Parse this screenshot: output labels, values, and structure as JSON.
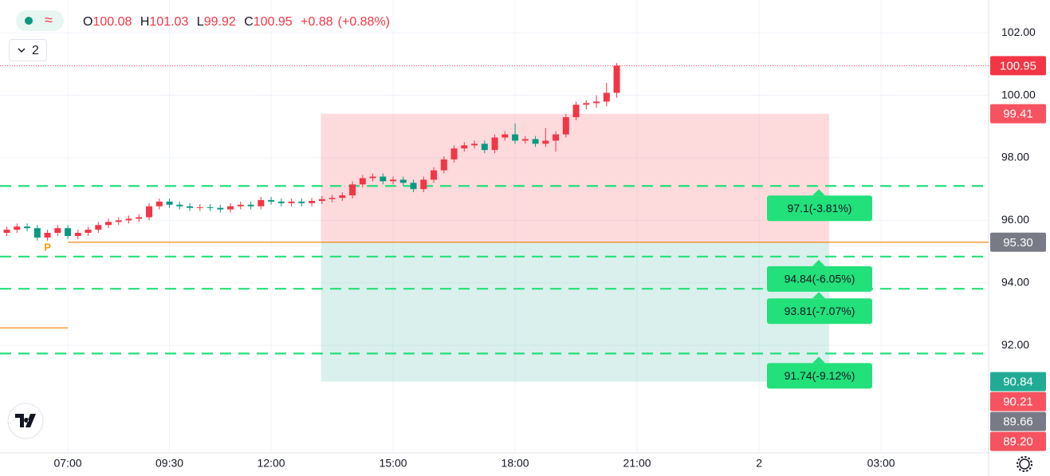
{
  "legend": {
    "open_label": "O",
    "open": "100.08",
    "high_label": "H",
    "high": "101.03",
    "low_label": "L",
    "low": "99.92",
    "close_label": "C",
    "close": "100.95",
    "change": "+0.88",
    "change_pct": "(+0.88%)"
  },
  "indicator_toggle": "2",
  "chart_data": {
    "type": "candlestick",
    "up_color": "#f23645",
    "down_color": "#089981",
    "open": [
      95.6,
      95.7,
      95.8,
      95.75,
      95.45,
      95.6,
      95.75,
      95.5,
      95.6,
      95.7,
      95.85,
      95.95,
      96.0,
      96.05,
      96.1,
      96.45,
      96.6,
      96.5,
      96.45,
      96.4,
      96.42,
      96.4,
      96.35,
      96.45,
      96.5,
      96.45,
      96.65,
      96.6,
      96.55,
      96.6,
      96.55,
      96.62,
      96.68,
      96.72,
      96.8,
      97.15,
      97.35,
      97.4,
      97.25,
      97.3,
      97.2,
      97.0,
      97.3,
      97.6,
      97.95,
      98.3,
      98.4,
      98.45,
      98.25,
      98.65,
      98.75,
      98.55,
      98.6,
      98.45,
      98.55,
      98.75,
      99.3,
      99.7,
      99.75,
      99.8,
      100.08
    ],
    "high": [
      95.8,
      95.9,
      95.9,
      95.85,
      95.7,
      95.85,
      95.85,
      95.7,
      95.8,
      95.95,
      96.05,
      96.1,
      96.15,
      96.2,
      96.55,
      96.7,
      96.7,
      96.6,
      96.55,
      96.52,
      96.52,
      96.5,
      96.55,
      96.6,
      96.6,
      96.75,
      96.75,
      96.7,
      96.7,
      96.7,
      96.72,
      96.78,
      96.82,
      96.9,
      97.25,
      97.45,
      97.5,
      97.5,
      97.4,
      97.4,
      97.3,
      97.4,
      97.7,
      98.05,
      98.4,
      98.5,
      98.55,
      98.55,
      98.75,
      98.85,
      99.1,
      98.7,
      98.7,
      98.95,
      98.85,
      99.4,
      99.8,
      99.85,
      100.0,
      100.4,
      101.03
    ],
    "low": [
      95.5,
      95.6,
      95.65,
      95.35,
      95.35,
      95.5,
      95.4,
      95.4,
      95.5,
      95.6,
      95.75,
      95.85,
      95.9,
      95.95,
      96.0,
      96.35,
      96.4,
      96.35,
      96.3,
      96.3,
      96.3,
      96.25,
      96.25,
      96.35,
      96.35,
      96.35,
      96.5,
      96.45,
      96.45,
      96.45,
      96.45,
      96.52,
      96.58,
      96.62,
      96.7,
      97.05,
      97.25,
      97.15,
      97.15,
      97.1,
      96.9,
      96.9,
      97.2,
      97.5,
      97.85,
      98.2,
      98.3,
      98.15,
      98.15,
      98.55,
      98.45,
      98.45,
      98.35,
      98.35,
      98.2,
      98.65,
      99.2,
      99.55,
      99.6,
      99.65,
      99.92
    ],
    "close": [
      95.7,
      95.8,
      95.75,
      95.45,
      95.6,
      95.75,
      95.5,
      95.6,
      95.7,
      95.85,
      95.95,
      96.0,
      96.05,
      96.1,
      96.45,
      96.6,
      96.5,
      96.45,
      96.4,
      96.42,
      96.4,
      96.35,
      96.45,
      96.5,
      96.45,
      96.65,
      96.6,
      96.55,
      96.6,
      96.55,
      96.62,
      96.68,
      96.72,
      96.8,
      97.15,
      97.35,
      97.4,
      97.25,
      97.3,
      97.2,
      97.0,
      97.3,
      97.6,
      97.95,
      98.3,
      98.4,
      98.45,
      98.25,
      98.65,
      98.75,
      98.55,
      98.6,
      98.45,
      98.55,
      98.75,
      99.3,
      99.7,
      99.75,
      99.8,
      100.08,
      100.95
    ],
    "xlim": [
      -0.67,
      96.58
    ],
    "xticks": [
      {
        "value": 6,
        "label": "07:00"
      },
      {
        "value": 16,
        "label": "09:30"
      },
      {
        "value": 26,
        "label": "12:00"
      },
      {
        "value": 38,
        "label": "15:00"
      },
      {
        "value": 50,
        "label": "18:00"
      },
      {
        "value": 62,
        "label": "21:00"
      },
      {
        "value": 74,
        "label": "2"
      },
      {
        "value": 86,
        "label": "03:00"
      }
    ],
    "ylim": [
      88.56,
      103.05
    ],
    "yticks": [
      {
        "value": 102,
        "label": "102.00"
      },
      {
        "value": 100,
        "label": "100.00"
      },
      {
        "value": 98,
        "label": "98.00"
      },
      {
        "value": 96,
        "label": "96.00"
      },
      {
        "value": 94,
        "label": "94.00"
      },
      {
        "value": 92,
        "label": "92.00"
      }
    ],
    "grid": true,
    "price_labels": [
      {
        "value": 100.95,
        "label": "100.95",
        "color": "#f23645"
      },
      {
        "value": 99.41,
        "label": "99.41",
        "color": "#f7525f"
      },
      {
        "value": 95.3,
        "label": "95.30",
        "color": "#787b86"
      },
      {
        "value": 90.84,
        "label": "90.84",
        "color": "#22ab94"
      },
      {
        "value": 90.21,
        "label": "90.21",
        "color": "#f7525f"
      },
      {
        "value": 89.66,
        "label": "89.66",
        "color": "#787b86"
      },
      {
        "value": 89.2,
        "label": "89.20",
        "color": "#f7525f"
      }
    ],
    "hlines": [
      {
        "value": 95.3,
        "from": 6,
        "to": 96.58,
        "color": "#f57c00"
      },
      {
        "value": 92.56,
        "from": -0.67,
        "to": 6,
        "color": "#f57c00"
      }
    ],
    "position": {
      "x_start": 30.9,
      "x_end": 80.9,
      "stop": 99.41,
      "entry": 95.3,
      "target": 90.84
    },
    "targets": [
      {
        "value": 97.1,
        "label": "97.1(-3.81%)"
      },
      {
        "value": 94.84,
        "label": "94.84(-6.05%)"
      },
      {
        "value": 93.81,
        "label": "93.81(-7.07%)"
      },
      {
        "value": 91.74,
        "label": "91.74(-9.12%)"
      }
    ],
    "target_color": "#22e07a",
    "signal": {
      "label": "P",
      "index": 4,
      "color": "#ff9800"
    }
  }
}
